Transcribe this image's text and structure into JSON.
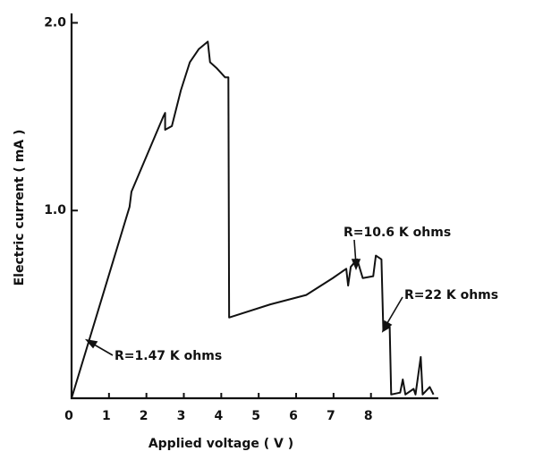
{
  "chart_data": {
    "type": "line",
    "xlabel": "Applied   voltage  ( V )",
    "ylabel": "Electric   current  ( mA )",
    "xlim": [
      0,
      9.8
    ],
    "ylim": [
      0,
      2.05
    ],
    "xticks": [
      0,
      1,
      2,
      3,
      4,
      5,
      6,
      7,
      8
    ],
    "yticks": [
      {
        "value": 1,
        "label": "1.0"
      },
      {
        "value": 2,
        "label": "2.0"
      }
    ],
    "series": [
      {
        "color": "#111111",
        "x": [
          0,
          1.55,
          1.6,
          2.45,
          2.5,
          2.5,
          2.68,
          2.92,
          3.16,
          3.4,
          3.64,
          3.7,
          3.87,
          4.1,
          4.19,
          4.21,
          5.31,
          6.27,
          6.98,
          7.34,
          7.39,
          7.46,
          7.63,
          7.78,
          8.06,
          8.13,
          8.28,
          8.33,
          8.5,
          8.54,
          8.78,
          8.85,
          8.92,
          9.14,
          9.19,
          9.33,
          9.38,
          9.57,
          9.67
        ],
        "values": [
          0,
          1.02,
          1.1,
          1.5,
          1.52,
          1.43,
          1.45,
          1.64,
          1.79,
          1.86,
          1.9,
          1.79,
          1.76,
          1.71,
          1.71,
          0.43,
          0.5,
          0.55,
          0.64,
          0.69,
          0.6,
          0.7,
          0.74,
          0.64,
          0.65,
          0.76,
          0.74,
          0.36,
          0.38,
          0.02,
          0.03,
          0.1,
          0.02,
          0.05,
          0.02,
          0.22,
          0.02,
          0.06,
          0.02
        ]
      }
    ],
    "annotations": [
      "R=1.47 K ohms",
      "R=10.6 K ohms",
      "R=22 K ohms"
    ]
  }
}
